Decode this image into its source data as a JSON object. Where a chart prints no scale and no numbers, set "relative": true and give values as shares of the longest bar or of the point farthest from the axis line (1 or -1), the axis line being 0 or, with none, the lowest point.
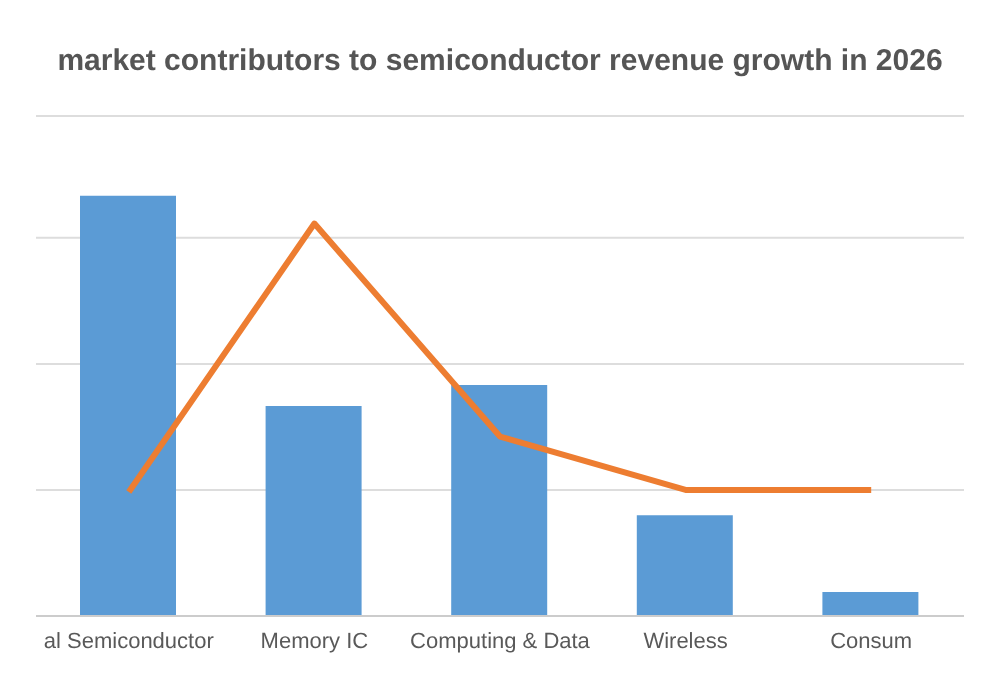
{
  "chart_data": {
    "type": "bar",
    "title": "market contributors to semiconductor revenue growth in 2026",
    "categories": [
      "al Semiconductor",
      "Memory IC",
      "Computing & Data",
      "Wireless",
      "Consum"
    ],
    "relative": true,
    "grid": "y",
    "legend": false,
    "marker": "none",
    "series": [
      {
        "color": "#5b9bd5",
        "values": [
          1,
          0.5,
          0.55,
          0.24,
          0.057
        ]
      },
      {
        "type": "line",
        "color": "#ed7d31",
        "values": [
          0.295,
          0.934,
          0.427,
          0.3,
          0.3
        ]
      }
    ]
  }
}
